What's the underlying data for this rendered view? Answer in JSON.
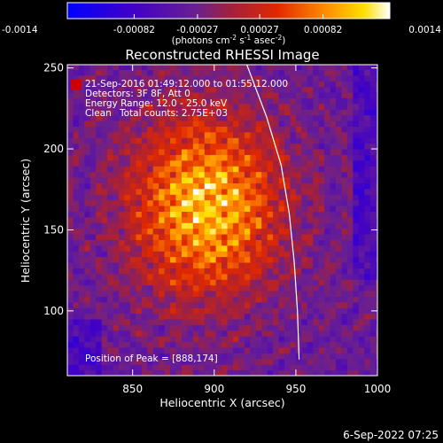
{
  "chart_data": {
    "type": "heatmap",
    "title": "Reconstructed RHESSI Image",
    "xlabel": "Heliocentric X (arcsec)",
    "ylabel": "Heliocentric Y (arcsec)",
    "xlim": [
      810,
      1000
    ],
    "ylim": [
      60,
      252
    ],
    "x_ticks": [
      850,
      900,
      950,
      1000
    ],
    "y_ticks": [
      100,
      150,
      200,
      250
    ],
    "x_tick_labels": [
      "850",
      "900",
      "950",
      "1000"
    ],
    "y_tick_labels": [
      "100",
      "150",
      "200",
      "250"
    ],
    "colorbar": {
      "range": [
        -0.0014,
        0.0014
      ],
      "ticks": [
        -0.0014,
        -0.00082,
        -0.00027,
        0.00027,
        0.00082,
        0.0014
      ],
      "tick_labels": [
        "-0.0014",
        "-0.00082",
        "-0.00027",
        "0.00027",
        "0.00082",
        "0.0014"
      ],
      "unit_label": "(photons cm",
      "unit_exp1": "-2",
      "unit_mid": " s",
      "unit_exp2": "-1",
      "unit_mid2": " asec",
      "unit_exp3": "-2",
      "unit_end": ")"
    },
    "annotations": {
      "time": "21-Sep-2016 01:49:12.000 to 01:55:12.000",
      "detectors": "Detectors: 3F 8F, Att 0",
      "energy": "Energy Range: 12.0 - 25.0 keV",
      "method": "Clean",
      "counts": "Total counts: 2.75E+03",
      "peak": "Position of Peak = [888,174]"
    },
    "peak": {
      "x": 888,
      "y": 174
    },
    "limb_curve": [
      [
        920,
        252
      ],
      [
        932,
        220
      ],
      [
        941,
        190
      ],
      [
        946,
        160
      ],
      [
        949,
        130
      ],
      [
        951,
        100
      ],
      [
        952,
        70
      ]
    ],
    "footer_date": "6-Sep-2022 07:25"
  }
}
